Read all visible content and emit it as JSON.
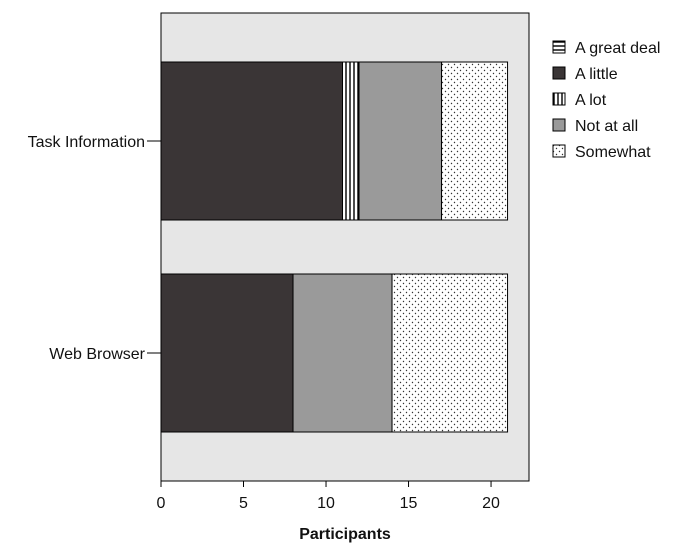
{
  "chart_data": {
    "type": "bar",
    "orientation": "horizontal",
    "stacked": true,
    "categories": [
      "Task Information",
      "Web Browser"
    ],
    "series": [
      {
        "name": "A little",
        "values": [
          11,
          8
        ],
        "pattern": "dark"
      },
      {
        "name": "A lot",
        "values": [
          1,
          0
        ],
        "pattern": "vertical-lines"
      },
      {
        "name": "Not at all",
        "values": [
          5,
          6
        ],
        "pattern": "gray"
      },
      {
        "name": "Somewhat",
        "values": [
          4,
          7
        ],
        "pattern": "dots"
      },
      {
        "name": "A great deal",
        "values": [
          0,
          0
        ],
        "pattern": "horizontal-lines"
      }
    ],
    "legend_order": [
      "A great deal",
      "A little",
      "A lot",
      "Not at all",
      "Somewhat"
    ],
    "xlabel": "Participants",
    "ylabel": "",
    "xlim": [
      0,
      22.3
    ],
    "xticks": [
      0,
      5,
      10,
      15,
      20
    ],
    "legend_position": "top-right",
    "grid": false,
    "colors": {
      "plot_background": "#e6e6e6",
      "dark": "#3a3536",
      "gray": "#9a9a9a",
      "outline": "#000000"
    }
  }
}
